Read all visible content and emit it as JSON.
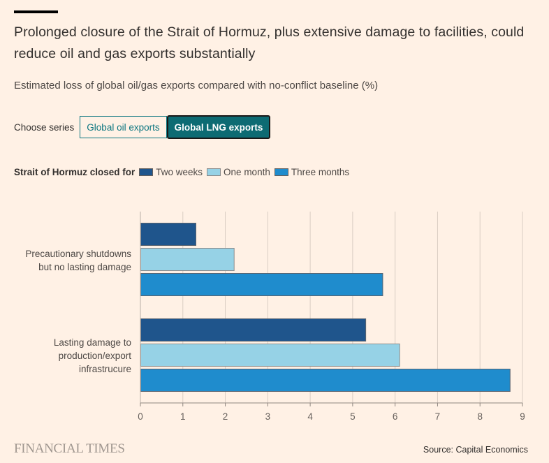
{
  "header": {
    "title": "Prolonged closure of the Strait of Hormuz, plus extensive damage to facilities, could reduce oil and gas exports substantially",
    "subtitle": "Estimated loss of global oil/gas exports compared with no-conflict baseline (%)"
  },
  "series_chooser": {
    "label": "Choose series",
    "options": [
      {
        "label": "Global oil exports",
        "selected": false
      },
      {
        "label": "Global LNG exports",
        "selected": true
      }
    ]
  },
  "legend": {
    "title": "Strait of Hormuz closed for",
    "items": [
      {
        "label": "Two weeks",
        "color": "#1f558c"
      },
      {
        "label": "One month",
        "color": "#96d2e6"
      },
      {
        "label": "Three months",
        "color": "#1f8ccd"
      }
    ]
  },
  "chart_data": {
    "type": "bar",
    "orientation": "horizontal",
    "title": "Prolonged closure of the Strait of Hormuz, plus extensive damage to facilities, could reduce oil and gas exports substantially",
    "subtitle": "Estimated loss of global oil/gas exports compared with no-conflict baseline (%)",
    "categories": [
      "Precautionary shutdowns but no lasting damage",
      "Lasting damage to production/export infrastrucure"
    ],
    "category_lines": [
      [
        "Precautionary shutdowns",
        "but no lasting damage"
      ],
      [
        "Lasting damage to",
        "production/export",
        "infrastrucure"
      ]
    ],
    "series": [
      {
        "name": "Two weeks",
        "values": [
          1.3,
          5.3
        ],
        "color": "#1f558c"
      },
      {
        "name": "One month",
        "values": [
          2.2,
          6.1
        ],
        "color": "#96d2e6"
      },
      {
        "name": "Three months",
        "values": [
          5.7,
          8.7
        ],
        "color": "#1f8ccd"
      }
    ],
    "xlim": [
      0,
      9
    ],
    "xticks": [
      "0",
      "1",
      "2",
      "3",
      "4",
      "5",
      "6",
      "7",
      "8",
      "9"
    ],
    "grid": true,
    "legend_position": "top-left"
  },
  "footer": {
    "logo": "FINANCIAL TIMES",
    "source": "Source: Capital Economics"
  }
}
